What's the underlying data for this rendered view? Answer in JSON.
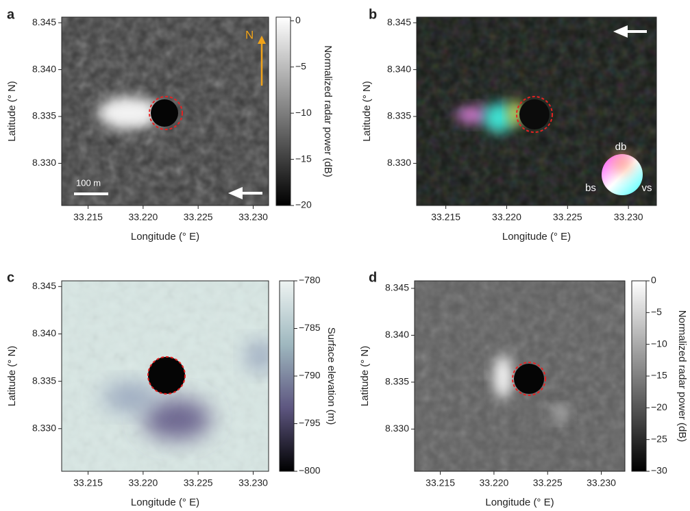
{
  "chart_data": [
    {
      "type": "image",
      "panel_label": "a",
      "xlabel": "Longitude (° E)",
      "ylabel": "Latitude (° N)",
      "xlim": [
        33.2126,
        33.2314
      ],
      "ylim": [
        8.3255,
        8.3456
      ],
      "xticks": [
        33.215,
        {
          "value": 33.22,
          "label": "33.220"
        },
        33.225,
        {
          "value": 33.23,
          "label": "33.230"
        }
      ],
      "yticks": [
        8.345,
        {
          "value": 8.34,
          "label": "8.340"
        },
        8.335,
        {
          "value": 8.33,
          "label": "8.330"
        }
      ],
      "colorbar": {
        "label": "Normalized radar power (dB)",
        "lim": [
          -20,
          0.4
        ],
        "colors": [
          "#000000",
          "#ffffff"
        ],
        "ticks": [
          0,
          {
            "value": -5,
            "label": "−5"
          },
          {
            "value": -10,
            "label": "−10"
          },
          {
            "value": -15,
            "label": "−15"
          },
          {
            "value": -20,
            "label": "−20"
          }
        ]
      },
      "annotations": [
        "N",
        "100 m"
      ]
    },
    {
      "type": "image",
      "panel_label": "b",
      "xlabel": "Longitude (° E)",
      "ylabel": "Latitude (° N)",
      "xlim": [
        33.2126,
        33.2323
      ],
      "ylim": [
        8.3255,
        8.3456
      ],
      "xticks": [
        33.215,
        {
          "value": 33.22,
          "label": "33.220"
        },
        33.225,
        {
          "value": 33.23,
          "label": "33.230"
        }
      ],
      "yticks": [
        8.345,
        {
          "value": 8.34,
          "label": "8.340"
        },
        8.335,
        {
          "value": 8.33,
          "label": "8.330"
        }
      ],
      "annotations": [
        "db",
        "bs",
        "vs"
      ]
    },
    {
      "type": "image",
      "panel_label": "c",
      "xlabel": "Longitude (° E)",
      "ylabel": "Latitude (° N)",
      "xlim": [
        33.2126,
        33.2314
      ],
      "ylim": [
        8.3255,
        8.3456
      ],
      "xticks": [
        33.215,
        {
          "value": 33.22,
          "label": "33.220"
        },
        33.225,
        {
          "value": 33.23,
          "label": "33.230"
        }
      ],
      "yticks": [
        8.345,
        {
          "value": 8.34,
          "label": "8.340"
        },
        8.335,
        {
          "value": 8.33,
          "label": "8.330"
        }
      ],
      "colorbar": {
        "label": "Surface elevation (m)",
        "lim": [
          -800,
          -780
        ],
        "colors": [
          "#000000",
          "#5d5680",
          "#9fb8bf",
          "#eef4f2"
        ],
        "ticks": [
          {
            "value": -780,
            "label": "−780"
          },
          {
            "value": -785,
            "label": "−785"
          },
          {
            "value": -790,
            "label": "−790"
          },
          {
            "value": -795,
            "label": "−795"
          },
          {
            "value": -800,
            "label": "−800"
          }
        ]
      }
    },
    {
      "type": "image",
      "panel_label": "d",
      "xlabel": "Longitude (° E)",
      "ylabel": "Latitude (° N)",
      "xlim": [
        33.2126,
        33.2322
      ],
      "ylim": [
        8.3255,
        8.3458
      ],
      "xticks": [
        33.215,
        {
          "value": 33.22,
          "label": "33.220"
        },
        33.225,
        {
          "value": 33.23,
          "label": "33.230"
        }
      ],
      "yticks": [
        8.345,
        {
          "value": 8.34,
          "label": "8.340"
        },
        8.335,
        {
          "value": 8.33,
          "label": "8.330"
        }
      ],
      "colorbar": {
        "label": "Normalized radar power (dB)",
        "lim": [
          -30,
          0
        ],
        "colors": [
          "#000000",
          "#ffffff"
        ],
        "ticks": [
          0,
          {
            "value": -5,
            "label": "−5"
          },
          {
            "value": -10,
            "label": "−10"
          },
          {
            "value": -15,
            "label": "−15"
          },
          {
            "value": -20,
            "label": "−20"
          },
          {
            "value": -25,
            "label": "−25"
          },
          {
            "value": -30,
            "label": "−30"
          }
        ]
      }
    }
  ]
}
